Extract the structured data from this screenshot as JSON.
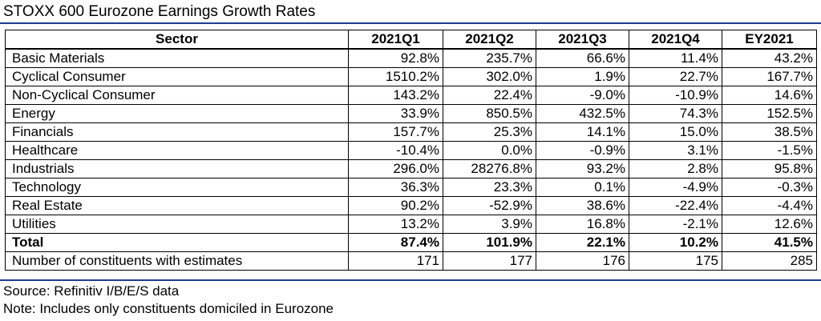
{
  "title": "STOXX 600 Eurozone Earnings Growth Rates",
  "colors": {
    "rule": "#1f3b8f",
    "text": "#000000",
    "border": "#000000"
  },
  "table": {
    "headers": [
      "Sector",
      "2021Q1",
      "2021Q2",
      "2021Q3",
      "2021Q4",
      "EY2021"
    ],
    "rows": [
      [
        "Basic Materials",
        "92.8%",
        "235.7%",
        "66.6%",
        "11.4%",
        "43.2%"
      ],
      [
        "Cyclical Consumer",
        "1510.2%",
        "302.0%",
        "1.9%",
        "22.7%",
        "167.7%"
      ],
      [
        "Non-Cyclical Consumer",
        "143.2%",
        "22.4%",
        "-9.0%",
        "-10.9%",
        "14.6%"
      ],
      [
        "Energy",
        "33.9%",
        "850.5%",
        "432.5%",
        "74.3%",
        "152.5%"
      ],
      [
        "Financials",
        "157.7%",
        "25.3%",
        "14.1%",
        "15.0%",
        "38.5%"
      ],
      [
        "Healthcare",
        "-10.4%",
        "0.0%",
        "-0.9%",
        "3.1%",
        "-1.5%"
      ],
      [
        "Industrials",
        "296.0%",
        "28276.8%",
        "93.2%",
        "2.8%",
        "95.8%"
      ],
      [
        "Technology",
        "36.3%",
        "23.3%",
        "0.1%",
        "-4.9%",
        "-0.3%"
      ],
      [
        "Real Estate",
        "90.2%",
        "-52.9%",
        "38.6%",
        "-22.4%",
        "-4.4%"
      ],
      [
        "Utilities",
        "13.2%",
        "3.9%",
        "16.8%",
        "-2.1%",
        "12.6%"
      ]
    ],
    "total": [
      "Total",
      "87.4%",
      "101.9%",
      "22.1%",
      "10.2%",
      "41.5%"
    ],
    "constituents": [
      "Number of constituents with estimates",
      "171",
      "177",
      "176",
      "175",
      "285"
    ]
  },
  "notes": {
    "source": "Source: Refinitiv I/B/E/S data",
    "note": "Note: Includes only constituents domiciled in Eurozone"
  }
}
